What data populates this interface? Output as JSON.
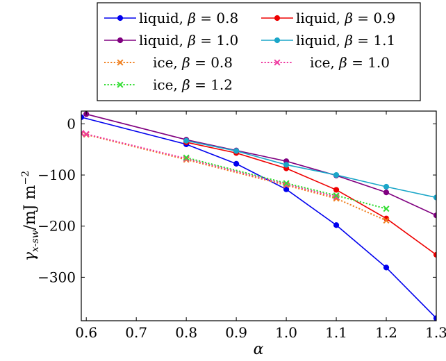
{
  "chart_data": {
    "type": "line",
    "title": "",
    "xlabel": "α",
    "ylabel": "γx-sw/mJ m⁻²",
    "ylabel_parts": {
      "symbol": "γ",
      "subscript": "x-sw",
      "unit": "/mJ m",
      "exponent": "−2"
    },
    "xlim": [
      0.59,
      1.3
    ],
    "ylim": [
      -385,
      25
    ],
    "xticks": [
      0.6,
      0.7,
      0.8,
      0.9,
      1.0,
      1.1,
      1.2,
      1.3
    ],
    "xtick_labels": [
      "0.6",
      "0.7",
      "0.8",
      "0.9",
      "1.0",
      "1.1",
      "1.2",
      "1.3"
    ],
    "yticks": [
      0,
      -100,
      -200,
      -300
    ],
    "ytick_labels": [
      "0",
      "−100",
      "−200",
      "−300"
    ],
    "grid": false,
    "legend_position": "top",
    "series": [
      {
        "name": "liquid, β = 0.8",
        "legend_prefix": "liquid, ",
        "legend_symbol": "β",
        "legend_suffix": " = 0.8",
        "color": "#0000ee",
        "style": "solid",
        "marker": "circle",
        "x": [
          0.59,
          0.8,
          0.9,
          1.0,
          1.1,
          1.2,
          1.3
        ],
        "y": [
          13,
          -40,
          -78,
          -128,
          -198,
          -281,
          -380
        ]
      },
      {
        "name": "liquid, β = 0.9",
        "legend_prefix": "liquid, ",
        "legend_symbol": "β",
        "legend_suffix": " = 0.9",
        "color": "#ee0000",
        "style": "solid",
        "marker": "circle",
        "x": [
          0.8,
          0.9,
          1.0,
          1.1,
          1.2,
          1.3
        ],
        "y": [
          -36,
          -57,
          -87,
          -129,
          -185,
          -256
        ]
      },
      {
        "name": "liquid, β = 1.0",
        "legend_prefix": "liquid, ",
        "legend_symbol": "β",
        "legend_suffix": " = 1.0",
        "color": "#800080",
        "style": "solid",
        "marker": "circle",
        "x": [
          0.6,
          0.8,
          0.9,
          1.0,
          1.1,
          1.2,
          1.3
        ],
        "y": [
          19,
          -31,
          -52,
          -73,
          -101,
          -134,
          -179
        ]
      },
      {
        "name": "liquid, β = 1.1",
        "legend_prefix": "liquid, ",
        "legend_symbol": "β",
        "legend_suffix": " = 1.1",
        "color": "#1aa6c8",
        "style": "solid",
        "marker": "circle",
        "x": [
          0.8,
          0.9,
          1.0,
          1.1,
          1.2,
          1.3
        ],
        "y": [
          -33,
          -53,
          -80,
          -100,
          -123,
          -144
        ]
      },
      {
        "name": "ice, β = 0.8",
        "legend_prefix": "ice, ",
        "legend_symbol": "β",
        "legend_suffix": " = 0.8",
        "color": "#f08020",
        "style": "dotted",
        "marker": "x",
        "x": [
          0.59,
          0.6,
          0.8,
          1.0,
          1.1,
          1.2
        ],
        "y": [
          -19,
          -21,
          -70,
          -120,
          -146,
          -189
        ]
      },
      {
        "name": "ice, β = 1.0",
        "legend_prefix": "ice, ",
        "legend_symbol": "β",
        "legend_suffix": " = 1.0",
        "color": "#ee3aa0",
        "style": "dotted",
        "marker": "x",
        "x": [
          0.59,
          0.6,
          0.8,
          1.0,
          1.1
        ],
        "y": [
          -18,
          -20,
          -68,
          -118,
          -143
        ]
      },
      {
        "name": "ice, β = 1.2",
        "legend_prefix": "ice, ",
        "legend_symbol": "β",
        "legend_suffix": " = 1.2",
        "color": "#33dd33",
        "style": "dotted",
        "marker": "x",
        "x": [
          0.8,
          1.0,
          1.1,
          1.2
        ],
        "y": [
          -66,
          -116,
          -140,
          -166
        ]
      }
    ]
  }
}
